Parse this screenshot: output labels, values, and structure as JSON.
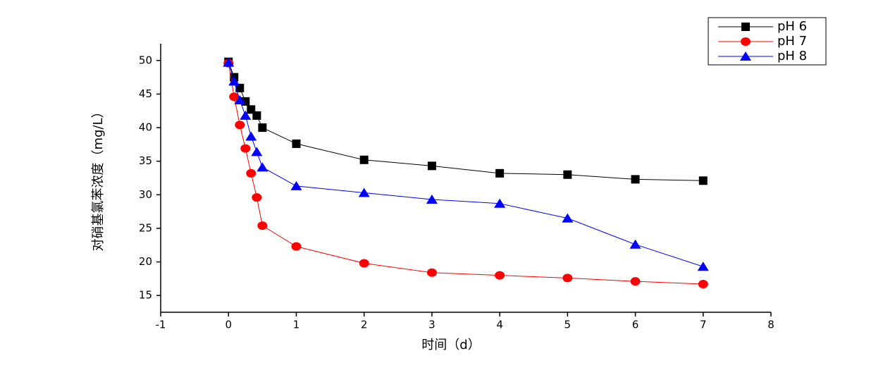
{
  "chart_data": {
    "type": "line",
    "x_label": "时间（d）",
    "y_label": "对硝基氯苯浓度（mg/L）",
    "x": [
      0,
      0.083,
      0.167,
      0.25,
      0.333,
      0.417,
      0.5,
      1,
      2,
      3,
      4,
      5,
      6,
      7
    ],
    "series": [
      {
        "name": "pH 6",
        "color": "#000000",
        "marker": "square",
        "values": [
          49.8,
          47.5,
          45.9,
          43.9,
          42.7,
          41.8,
          40.0,
          37.6,
          35.2,
          34.3,
          33.2,
          33.0,
          32.3,
          32.1
        ]
      },
      {
        "name": "pH 7",
        "color": "#ff0000",
        "marker": "circle",
        "values": [
          49.6,
          44.6,
          40.4,
          36.9,
          33.2,
          29.6,
          25.4,
          22.3,
          19.8,
          18.4,
          18.0,
          17.6,
          17.1,
          16.7
        ]
      },
      {
        "name": "pH 8",
        "color": "#0000ff",
        "marker": "triangle",
        "values": [
          49.7,
          46.9,
          44.1,
          41.8,
          38.7,
          36.4,
          34.1,
          31.3,
          30.3,
          29.3,
          28.7,
          26.5,
          22.6,
          19.3
        ]
      }
    ],
    "xlim": [
      -1,
      8
    ],
    "xticks": [
      -1,
      0,
      1,
      2,
      3,
      4,
      5,
      6,
      7,
      8
    ],
    "ylim": [
      12.5,
      52.5
    ],
    "yticks": [
      15,
      20,
      25,
      30,
      35,
      40,
      45,
      50
    ],
    "grid": false,
    "legend": "top-right"
  }
}
